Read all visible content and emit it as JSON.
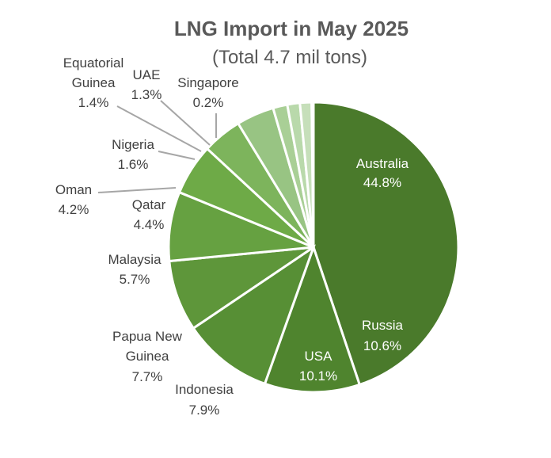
{
  "chart_data": {
    "type": "pie",
    "title": "LNG Import in May 2025",
    "subtitle": "(Total 4.7 mil tons)",
    "slices": [
      {
        "name": "Australia",
        "value": 44.8,
        "label": "44.8%",
        "color": "#4a7a2b"
      },
      {
        "name": "Russia",
        "value": 10.6,
        "label": "10.6%",
        "color": "#4f842e"
      },
      {
        "name": "USA",
        "value": 10.1,
        "label": "10.1%",
        "color": "#578f35"
      },
      {
        "name": "Indonesia",
        "value": 7.9,
        "label": "7.9%",
        "color": "#5e963a"
      },
      {
        "name": "Papua New Guinea",
        "value": 7.7,
        "label": "7.7%",
        "color": "#66a141"
      },
      {
        "name": "Malaysia",
        "value": 5.7,
        "label": "5.7%",
        "color": "#6eaa47"
      },
      {
        "name": "Qatar",
        "value": 4.4,
        "label": "4.4%",
        "color": "#7db45c"
      },
      {
        "name": "Oman",
        "value": 4.2,
        "label": "4.2%",
        "color": "#98c483"
      },
      {
        "name": "Nigeria",
        "value": 1.6,
        "label": "1.6%",
        "color": "#a9cf96"
      },
      {
        "name": "Equatorial Guinea",
        "value": 1.4,
        "label": "1.4%",
        "color": "#b9d9ab"
      },
      {
        "name": "UAE",
        "value": 1.3,
        "label": "1.3%",
        "color": "#c6dfba"
      },
      {
        "name": "Singapore",
        "value": 0.2,
        "label": "0.2%",
        "color": "#d3e6c9"
      }
    ]
  }
}
